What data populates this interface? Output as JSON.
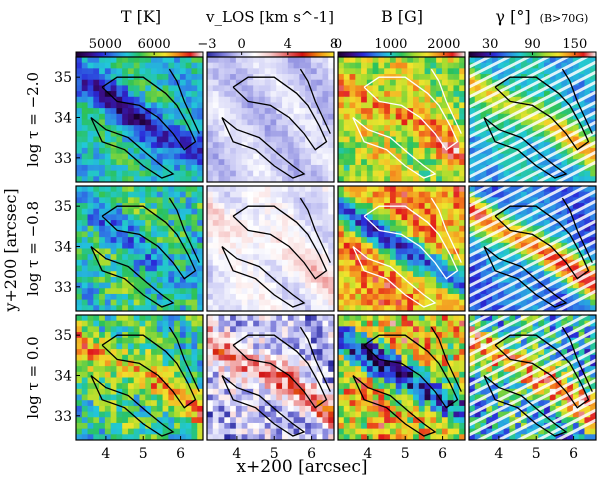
{
  "chart_data": {
    "type": "heatmap",
    "columns": [
      {
        "key": "T",
        "title": "T [K]",
        "title_note": "",
        "colorbar_ticks": [
          5000,
          6000
        ],
        "colorbar_range": [
          4400,
          7000
        ],
        "colormap": [
          "#1a0030",
          "#3a0a7a",
          "#2a2ad8",
          "#2f7fe6",
          "#22c8d8",
          "#2bc25a",
          "#a7dc2f",
          "#f2e32d",
          "#f48a1e",
          "#e11a1a",
          "#f2f2f2"
        ]
      },
      {
        "key": "vLOS",
        "title": "v_LOS [km s^-1]",
        "title_note": "",
        "colorbar_ticks": [
          -3,
          0,
          4,
          8
        ],
        "colorbar_range": [
          -3,
          8
        ],
        "colormap": [
          "#2a2aa0",
          "#7878d8",
          "#c8c8f4",
          "#ffffff",
          "#f6c8c8",
          "#e66a6a",
          "#d01010",
          "#f08a10",
          "#f8e830"
        ]
      },
      {
        "key": "B",
        "title": "B [G]",
        "title_note": "",
        "colorbar_ticks": [
          0,
          1000,
          2000
        ],
        "colorbar_range": [
          0,
          2400
        ],
        "colormap": [
          "#1a0030",
          "#3a0a7a",
          "#2a2ad8",
          "#2f7fe6",
          "#22c8d8",
          "#2bc25a",
          "#a7dc2f",
          "#f2e32d",
          "#f48a1e",
          "#e11a1a",
          "#f2f2f2"
        ]
      },
      {
        "key": "gamma",
        "title": "γ [°]",
        "title_note": "(B>70G)",
        "colorbar_ticks": [
          30,
          90,
          150
        ],
        "colorbar_range": [
          0,
          180
        ],
        "colormap": [
          "#1a0030",
          "#3a0a7a",
          "#2a2ad8",
          "#2f7fe6",
          "#22c8d8",
          "#2bc25a",
          "#a7dc2f",
          "#f2e32d",
          "#f48a1e",
          "#e11a1a",
          "#f2f2f2"
        ]
      }
    ],
    "rows": [
      {
        "label": "log τ = −2.0"
      },
      {
        "label": "log τ = −0.8"
      },
      {
        "label": "log τ = 0.0"
      }
    ],
    "xlabel": "x+200 [arcsec]",
    "ylabel": "y+200 [arcsec]",
    "x_range": [
      3.2,
      6.6
    ],
    "y_range": [
      32.4,
      35.5
    ],
    "x_ticks": [
      4,
      5,
      6
    ],
    "y_ticks": [
      33,
      34,
      35
    ],
    "maps": {
      "T": [
        {
          "base": 0.42,
          "band": -0.28,
          "amp": 0.1
        },
        {
          "base": 0.46,
          "band": -0.12,
          "amp": 0.14
        },
        {
          "base": 0.48,
          "band": 0.28,
          "amp": 0.16
        }
      ],
      "vLOS": [
        {
          "base": 0.27,
          "band": -0.02,
          "amp": 0.05
        },
        {
          "base": 0.33,
          "band": 0.12,
          "amp": 0.06
        },
        {
          "base": 0.25,
          "band": 0.4,
          "amp": 0.2
        }
      ],
      "B": [
        {
          "base": 0.62,
          "band": 0.2,
          "amp": 0.14
        },
        {
          "base": 0.78,
          "band": -0.55,
          "amp": 0.12
        },
        {
          "base": 0.7,
          "band": -0.55,
          "amp": 0.22
        }
      ],
      "gamma": [
        {
          "base": 0.38,
          "band": 0.32,
          "amp": 0.06
        },
        {
          "base": 0.28,
          "band": 0.6,
          "amp": 0.06
        },
        {
          "base": 0.4,
          "band": 0.45,
          "amp": 0.22
        }
      ]
    },
    "contour_levels": [
      "outer",
      "inner"
    ]
  }
}
